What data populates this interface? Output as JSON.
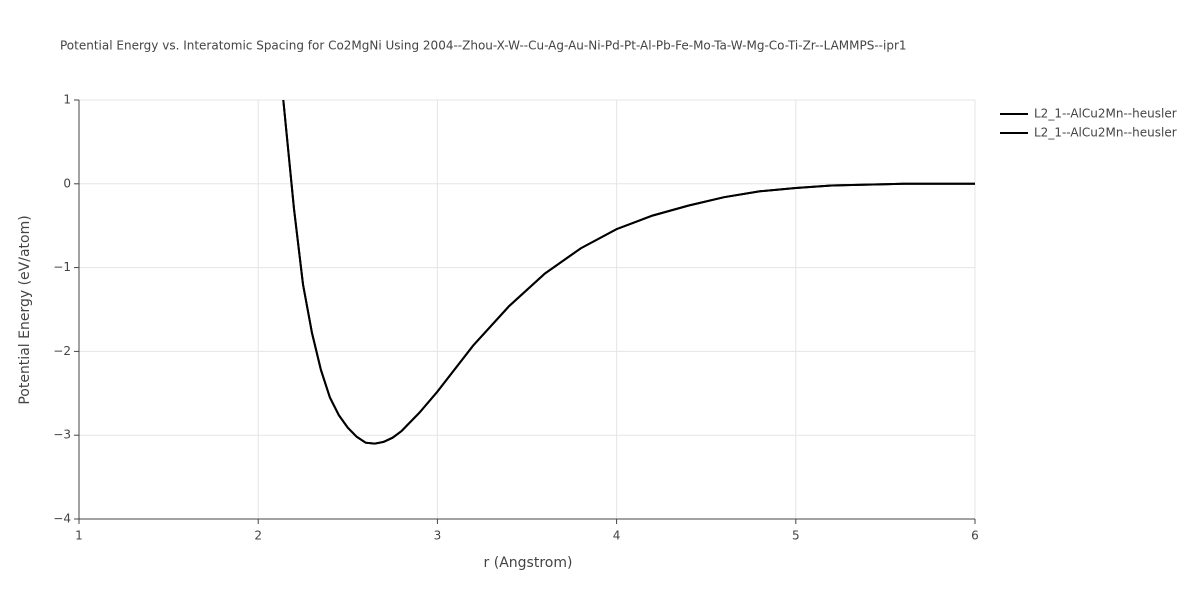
{
  "chart_data": {
    "type": "line",
    "title": "Potential Energy vs. Interatomic Spacing for Co2MgNi Using 2004--Zhou-X-W--Cu-Ag-Au-Ni-Pd-Pt-Al-Pb-Fe-Mo-Ta-W-Mg-Co-Ti-Zr--LAMMPS--ipr1",
    "x_label": "r (Angstrom)",
    "y_label": "Potential Energy (eV/atom)",
    "xlim": [
      1,
      6
    ],
    "ylim": [
      -4,
      1
    ],
    "xticks": [
      1,
      2,
      3,
      4,
      5,
      6
    ],
    "yticks": [
      {
        "value": -4,
        "label": "−4"
      },
      {
        "value": -3,
        "label": "−3"
      },
      {
        "value": -2,
        "label": "−2"
      },
      {
        "value": -1,
        "label": "−1"
      },
      0,
      1
    ],
    "grid": true,
    "x": [
      2.14,
      2.2,
      2.25,
      2.3,
      2.35,
      2.4,
      2.45,
      2.5,
      2.55,
      2.6,
      2.65,
      2.7,
      2.75,
      2.8,
      2.9,
      3.0,
      3.2,
      3.4,
      3.6,
      3.8,
      4.0,
      4.2,
      4.4,
      4.6,
      4.8,
      5.0,
      5.2,
      5.4,
      5.6,
      6.0
    ],
    "series": [
      {
        "name": "L2_1--AlCu2Mn--heusler",
        "color": "#000000",
        "values": [
          1.0,
          -0.3,
          -1.2,
          -1.78,
          -2.22,
          -2.55,
          -2.76,
          -2.91,
          -3.02,
          -3.09,
          -3.1,
          -3.08,
          -3.03,
          -2.95,
          -2.73,
          -2.48,
          -1.93,
          -1.46,
          -1.07,
          -0.77,
          -0.54,
          -0.38,
          -0.26,
          -0.16,
          -0.09,
          -0.05,
          -0.02,
          -0.01,
          0,
          0
        ]
      },
      {
        "name": "L2_1--AlCu2Mn--heusler",
        "color": "#000000",
        "values": [
          1.0,
          -0.3,
          -1.2,
          -1.78,
          -2.22,
          -2.55,
          -2.76,
          -2.91,
          -3.02,
          -3.09,
          -3.1,
          -3.08,
          -3.03,
          -2.95,
          -2.73,
          -2.48,
          -1.93,
          -1.46,
          -1.07,
          -0.77,
          -0.54,
          -0.38,
          -0.26,
          -0.16,
          -0.09,
          -0.05,
          -0.02,
          -0.01,
          0,
          0
        ]
      }
    ]
  }
}
